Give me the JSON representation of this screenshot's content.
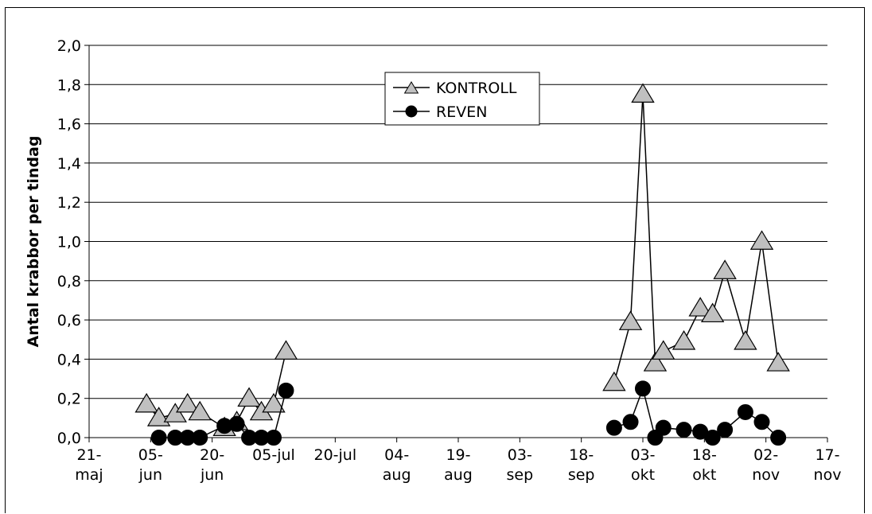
{
  "chart_data": {
    "type": "line",
    "title": "",
    "xlabel": "",
    "ylabel": "Antal krabbor per tindag",
    "ylim": [
      0,
      2.0
    ],
    "y_ticks": [
      "0,0",
      "0,2",
      "0,4",
      "0,6",
      "0,8",
      "1,0",
      "1,2",
      "1,4",
      "1,6",
      "1,8",
      "2,0"
    ],
    "x_range": [
      "2000-05-21",
      "2000-11-17"
    ],
    "x_ticks": [
      {
        "date": "2000-05-21",
        "line1": "21-",
        "line2": "maj"
      },
      {
        "date": "2000-06-05",
        "line1": "05-",
        "line2": "jun"
      },
      {
        "date": "2000-06-20",
        "line1": "20-",
        "line2": "jun"
      },
      {
        "date": "2000-07-05",
        "line1": "05-jul",
        "line2": ""
      },
      {
        "date": "2000-07-20",
        "line1": "20-jul",
        "line2": ""
      },
      {
        "date": "2000-08-04",
        "line1": "04-",
        "line2": "aug"
      },
      {
        "date": "2000-08-19",
        "line1": "19-",
        "line2": "aug"
      },
      {
        "date": "2000-09-03",
        "line1": "03-",
        "line2": "sep"
      },
      {
        "date": "2000-09-18",
        "line1": "18-",
        "line2": "sep"
      },
      {
        "date": "2000-10-03",
        "line1": "03-",
        "line2": "okt"
      },
      {
        "date": "2000-10-18",
        "line1": "18-",
        "line2": "okt"
      },
      {
        "date": "2000-11-02",
        "line1": "02-",
        "line2": "nov"
      },
      {
        "date": "2000-11-17",
        "line1": "17-",
        "line2": "nov"
      }
    ],
    "grid": "horizontal",
    "legend_position": "top-center",
    "series": [
      {
        "name": "KONTROLL",
        "marker": "triangle",
        "color": "#c0c0c0",
        "segments": [
          [
            {
              "x": "2000-06-04",
              "y": 0.17
            },
            {
              "x": "2000-06-07",
              "y": 0.1
            },
            {
              "x": "2000-06-11",
              "y": 0.12
            },
            {
              "x": "2000-06-14",
              "y": 0.17
            },
            {
              "x": "2000-06-17",
              "y": 0.13
            },
            {
              "x": "2000-06-23",
              "y": 0.05
            },
            {
              "x": "2000-06-26",
              "y": 0.08
            },
            {
              "x": "2000-06-29",
              "y": 0.2
            },
            {
              "x": "2000-07-02",
              "y": 0.13
            },
            {
              "x": "2000-07-05",
              "y": 0.17
            },
            {
              "x": "2000-07-08",
              "y": 0.44
            }
          ],
          [
            {
              "x": "2000-09-26",
              "y": 0.28
            },
            {
              "x": "2000-09-30",
              "y": 0.59
            },
            {
              "x": "2000-10-03",
              "y": 1.75
            },
            {
              "x": "2000-10-06",
              "y": 0.38
            },
            {
              "x": "2000-10-08",
              "y": 0.44
            },
            {
              "x": "2000-10-13",
              "y": 0.49
            },
            {
              "x": "2000-10-17",
              "y": 0.66
            },
            {
              "x": "2000-10-20",
              "y": 0.63
            },
            {
              "x": "2000-10-23",
              "y": 0.85
            },
            {
              "x": "2000-10-28",
              "y": 0.49
            },
            {
              "x": "2000-11-01",
              "y": 1.0
            },
            {
              "x": "2000-11-05",
              "y": 0.38
            }
          ]
        ]
      },
      {
        "name": "REVEN",
        "marker": "circle",
        "color": "#000000",
        "segments": [
          [
            {
              "x": "2000-06-07",
              "y": 0.0
            },
            {
              "x": "2000-06-11",
              "y": 0.0
            },
            {
              "x": "2000-06-14",
              "y": 0.0
            },
            {
              "x": "2000-06-17",
              "y": 0.0
            },
            {
              "x": "2000-06-23",
              "y": 0.06
            },
            {
              "x": "2000-06-26",
              "y": 0.07
            },
            {
              "x": "2000-06-29",
              "y": 0.0
            },
            {
              "x": "2000-07-02",
              "y": 0.0
            },
            {
              "x": "2000-07-05",
              "y": 0.0
            },
            {
              "x": "2000-07-08",
              "y": 0.24
            }
          ],
          [
            {
              "x": "2000-09-26",
              "y": 0.05
            },
            {
              "x": "2000-09-30",
              "y": 0.08
            },
            {
              "x": "2000-10-03",
              "y": 0.25
            },
            {
              "x": "2000-10-06",
              "y": 0.0
            },
            {
              "x": "2000-10-08",
              "y": 0.05
            },
            {
              "x": "2000-10-13",
              "y": 0.04
            },
            {
              "x": "2000-10-17",
              "y": 0.03
            },
            {
              "x": "2000-10-20",
              "y": 0.0
            },
            {
              "x": "2000-10-23",
              "y": 0.04
            },
            {
              "x": "2000-10-28",
              "y": 0.13
            },
            {
              "x": "2000-11-01",
              "y": 0.08
            },
            {
              "x": "2000-11-05",
              "y": 0.0
            }
          ]
        ]
      }
    ]
  }
}
